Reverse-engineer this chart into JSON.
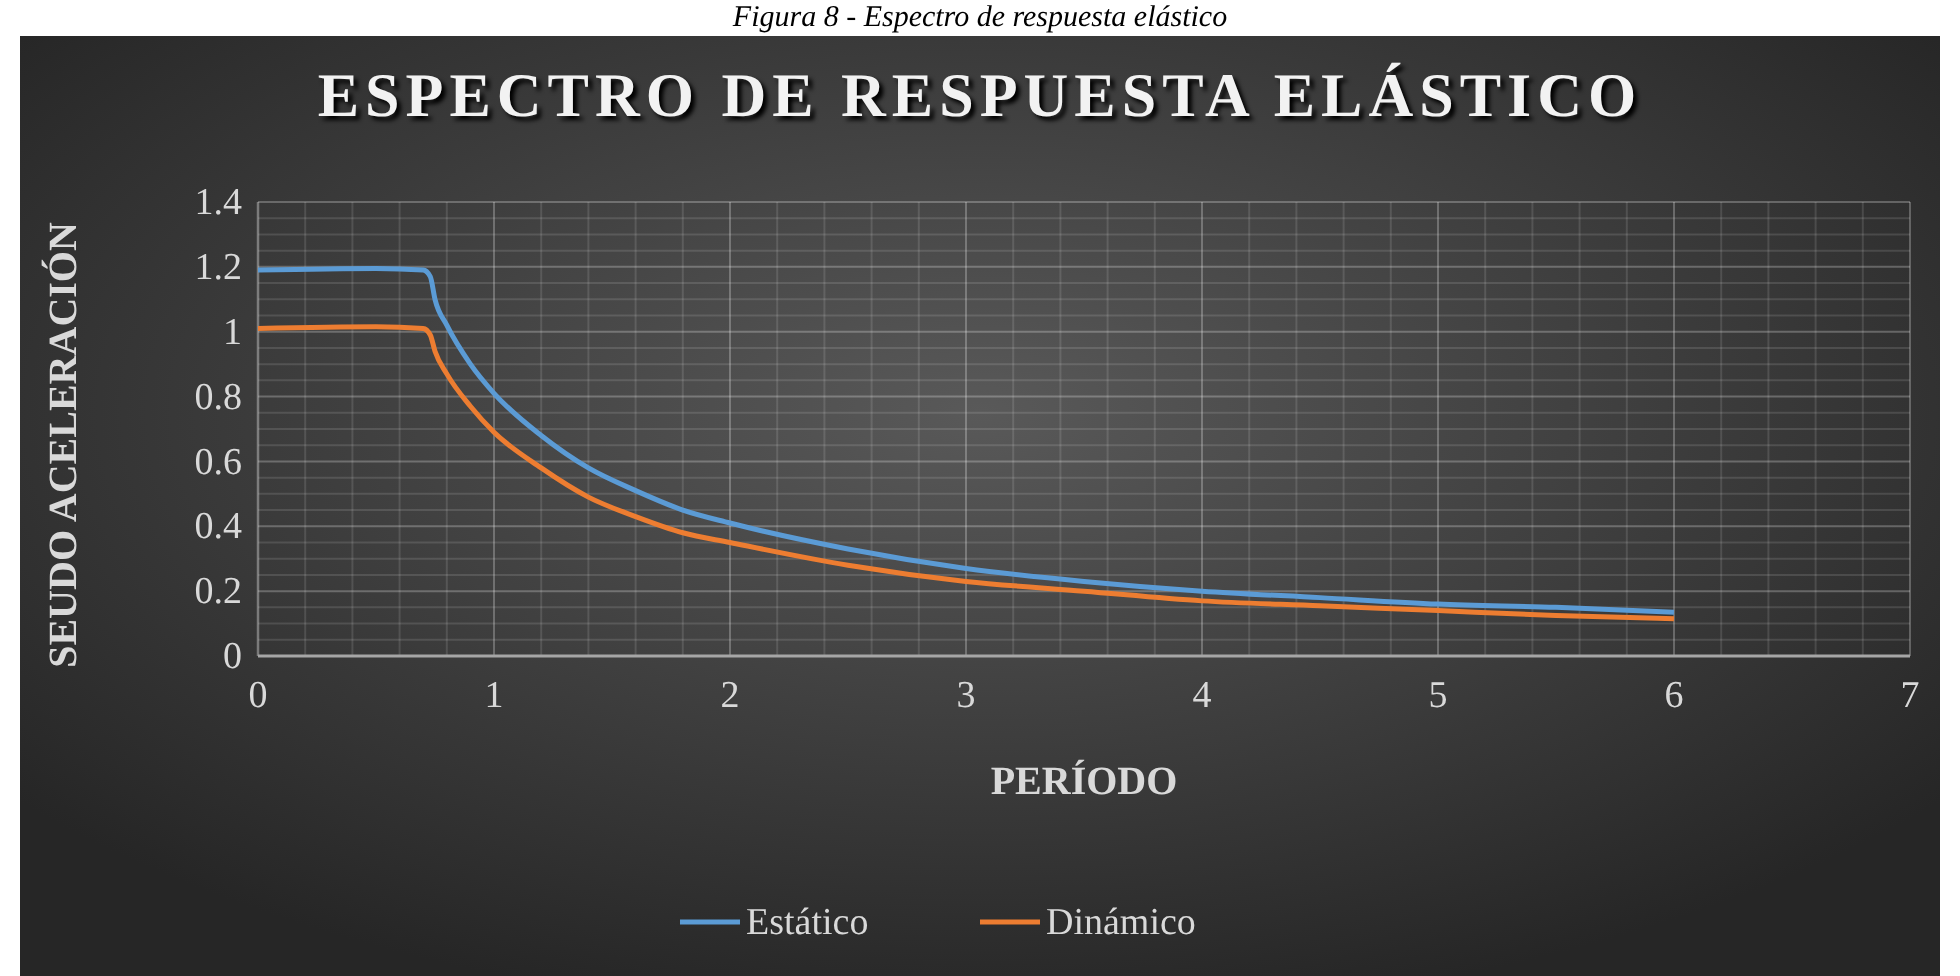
{
  "chart_data": {
    "type": "line",
    "title": "ESPECTRO DE RESPUESTA ELÁSTICO",
    "xlabel": "PERÍODO",
    "ylabel": "SEUDO ACELERACIÓN",
    "annotations": [
      "Figura 8 - Espectro de respuesta elástico"
    ],
    "xlim": [
      0,
      7
    ],
    "xticks": [
      0,
      1,
      2,
      3,
      4,
      5,
      6,
      7
    ],
    "ylim": [
      0,
      1.4
    ],
    "yticks": [
      0,
      0.2,
      0.4,
      0.6,
      0.8,
      1,
      1.2,
      1.4
    ],
    "grid": true,
    "legend": "bottom",
    "marker": "none",
    "line_style": "solid",
    "x": [
      0,
      0.5,
      0.7,
      0.73,
      0.75,
      0.8,
      0.9,
      1,
      1.2,
      1.4,
      1.6,
      1.8,
      2,
      2.5,
      3,
      3.5,
      4,
      4.5,
      5,
      5.5,
      6
    ],
    "series": [
      {
        "name": "Estático",
        "color": "#5b9bd5",
        "values": [
          1.19,
          1.195,
          1.19,
          1.17,
          1.1,
          1.02,
          0.9,
          0.81,
          0.68,
          0.58,
          0.51,
          0.45,
          0.41,
          0.33,
          0.27,
          0.23,
          0.2,
          0.18,
          0.16,
          0.15,
          0.135
        ]
      },
      {
        "name": "Dinámico",
        "color": "#ed7d31",
        "values": [
          1.01,
          1.015,
          1.01,
          0.99,
          0.94,
          0.87,
          0.77,
          0.69,
          0.58,
          0.49,
          0.43,
          0.38,
          0.35,
          0.28,
          0.23,
          0.2,
          0.17,
          0.155,
          0.14,
          0.125,
          0.115
        ]
      }
    ]
  }
}
